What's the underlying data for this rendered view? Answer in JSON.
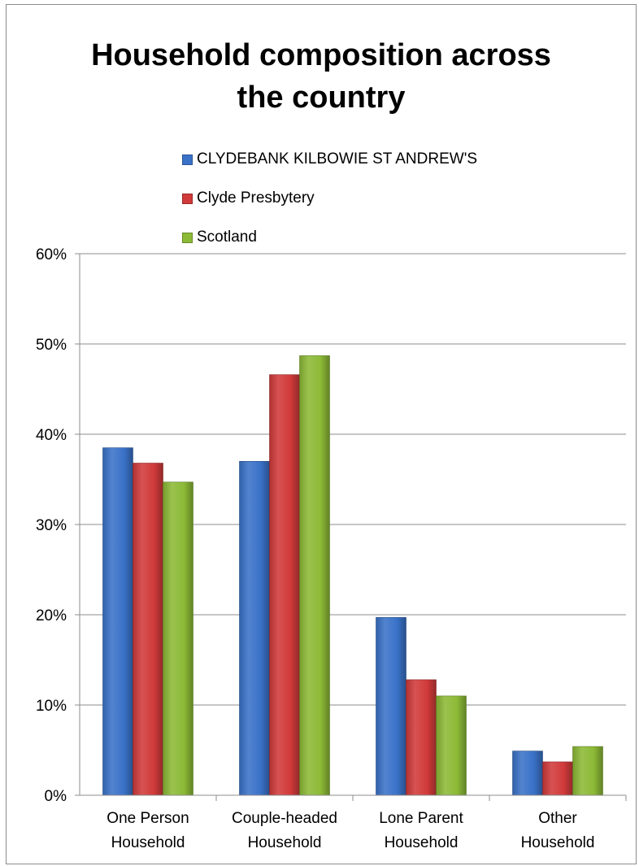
{
  "chart_data": {
    "type": "bar",
    "title": "Household composition across the country",
    "title_lines": [
      "Household composition across",
      "the country"
    ],
    "categories": [
      "One Person Household",
      "Couple-headed Household",
      "Lone Parent Household",
      "Other Household"
    ],
    "category_lines": [
      [
        "One Person",
        "Household"
      ],
      [
        "Couple-headed",
        "Household"
      ],
      [
        "Lone Parent",
        "Household"
      ],
      [
        "Other",
        "Household"
      ]
    ],
    "series": [
      {
        "name": "CLYDEBANK KILBOWIE ST ANDREW'S",
        "color": "#3a72c8",
        "values": [
          38.5,
          37.0,
          19.7,
          4.9
        ]
      },
      {
        "name": "Clyde Presbytery",
        "color": "#d13a3a",
        "values": [
          36.8,
          46.6,
          12.8,
          3.7
        ]
      },
      {
        "name": "Scotland",
        "color": "#8cba36",
        "values": [
          34.7,
          48.7,
          11.0,
          5.4
        ]
      }
    ],
    "yticks": [
      "0%",
      "10%",
      "20%",
      "30%",
      "40%",
      "50%",
      "60%"
    ],
    "ylim": [
      0,
      60
    ],
    "ylabel": "",
    "xlabel": "",
    "grid": true,
    "legend_position": "top"
  }
}
